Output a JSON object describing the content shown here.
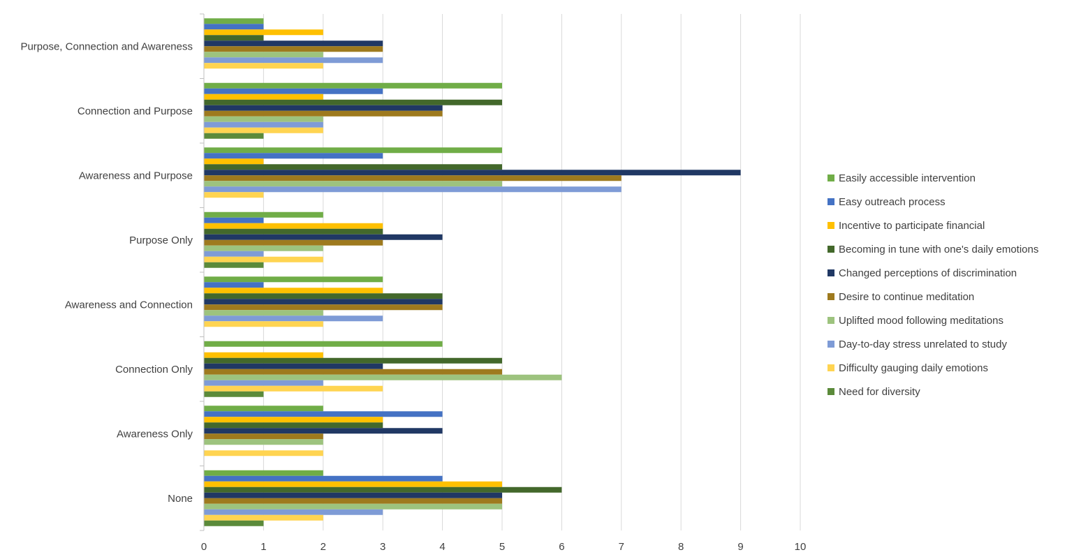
{
  "chart_data": {
    "type": "bar",
    "orientation": "horizontal",
    "title": "",
    "xlabel": "",
    "ylabel": "",
    "xlim": [
      0,
      10
    ],
    "x_ticks": [
      0,
      1,
      2,
      3,
      4,
      5,
      6,
      7,
      8,
      9,
      10
    ],
    "grid": "vertical",
    "legend_position": "right",
    "categories": [
      "Purpose, Connection and Awareness",
      "Connection and Purpose",
      "Awareness and Purpose",
      "Purpose Only",
      "Awareness and Connection",
      "Connection Only",
      "Awareness Only",
      "None"
    ],
    "series": [
      {
        "name": "Easily accessible intervention",
        "color": "#70AD47",
        "values": [
          1,
          5,
          5,
          2,
          3,
          4,
          2,
          2
        ]
      },
      {
        "name": "Easy outreach process",
        "color": "#4472C4",
        "values": [
          1,
          3,
          3,
          1,
          1,
          0,
          4,
          4
        ]
      },
      {
        "name": "Incentive to participate financial",
        "color": "#FFC000",
        "values": [
          2,
          2,
          1,
          3,
          3,
          2,
          3,
          5
        ]
      },
      {
        "name": "Becoming in tune with one's daily emotions",
        "color": "#43682B",
        "values": [
          1,
          5,
          5,
          3,
          4,
          5,
          3,
          6
        ]
      },
      {
        "name": "Changed perceptions of discrimination",
        "color": "#203864",
        "values": [
          3,
          4,
          9,
          4,
          4,
          3,
          4,
          5
        ]
      },
      {
        "name": "Desire to continue meditation",
        "color": "#9E7A1E",
        "values": [
          3,
          4,
          7,
          3,
          4,
          5,
          2,
          5
        ]
      },
      {
        "name": "Uplifted mood following meditations",
        "color": "#9DC37E",
        "values": [
          2,
          2,
          5,
          2,
          2,
          6,
          2,
          5
        ]
      },
      {
        "name": "Day-to-day stress unrelated to study",
        "color": "#7E9BD6",
        "values": [
          3,
          2,
          7,
          1,
          3,
          2,
          0,
          3
        ]
      },
      {
        "name": "Difficulty gauging daily emotions",
        "color": "#FFD451",
        "values": [
          2,
          2,
          1,
          2,
          2,
          3,
          2,
          2
        ]
      },
      {
        "name": "Need for diversity",
        "color": "#5B8A3A",
        "values": [
          0,
          1,
          0,
          1,
          0,
          1,
          0,
          1
        ]
      }
    ]
  }
}
